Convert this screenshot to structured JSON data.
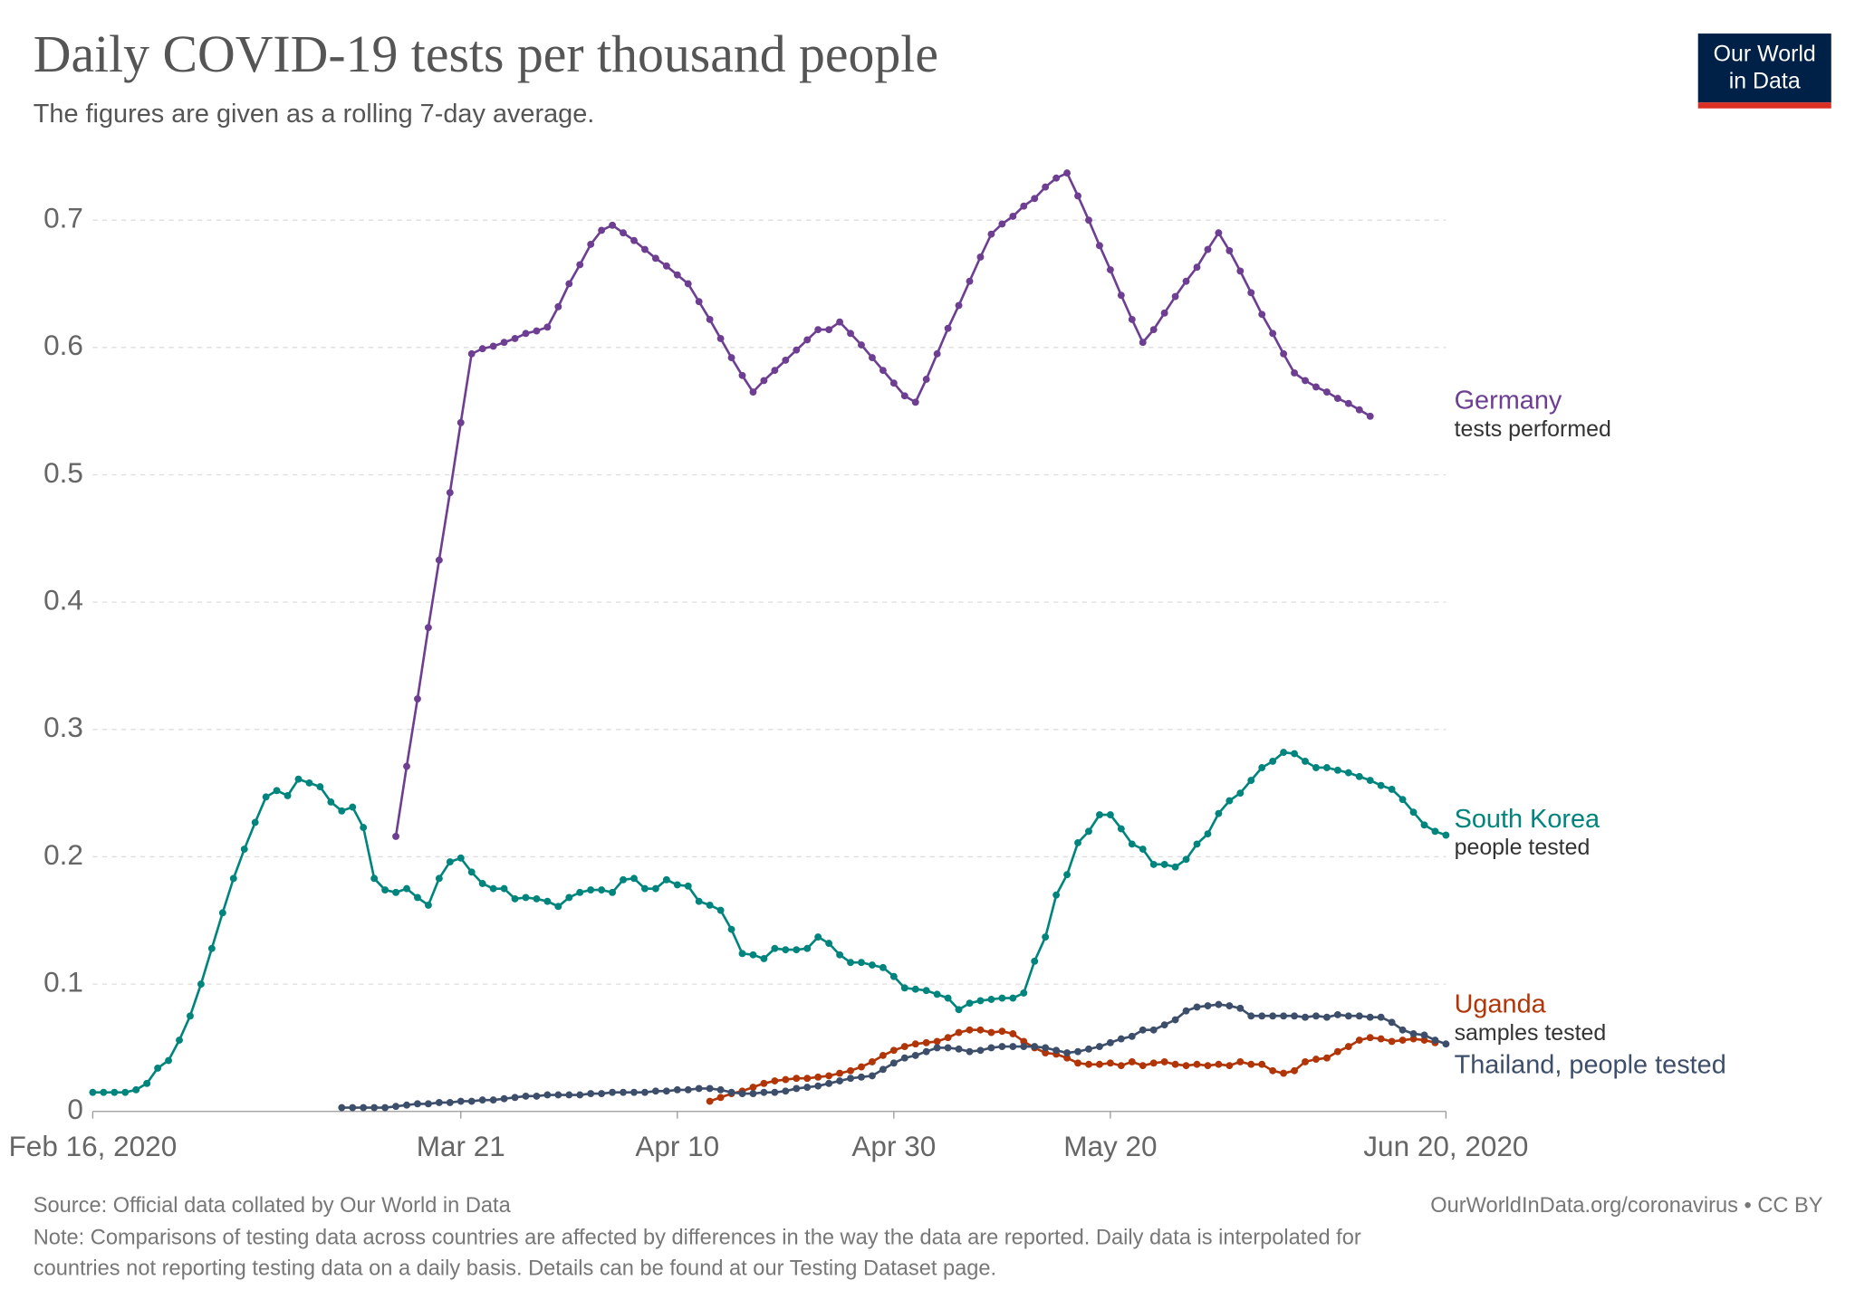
{
  "chart_data": {
    "type": "line",
    "title": "Daily COVID-19 tests per thousand people",
    "subtitle": "The figures are given as a rolling 7-day average.",
    "logo": [
      "Our World",
      "in Data"
    ],
    "source": "Source: Official data collated by Our World in Data",
    "credit": "OurWorldInData.org/coronavirus • CC BY",
    "note": [
      "Note: Comparisons of testing data across countries are affected by differences in the way the data are reported. Daily data is interpolated for",
      "countries not reporting testing data on a daily basis. Details can be found at our Testing Dataset page."
    ],
    "grid": true,
    "ylim": [
      0,
      0.7
    ],
    "yticks": [
      0,
      0.1,
      0.2,
      0.3,
      0.4,
      0.5,
      0.6,
      0.7
    ],
    "xlim": [
      "2020-02-16",
      "2020-06-20"
    ],
    "xticks": [
      {
        "value": "2020-02-16",
        "label": "Feb 16, 2020"
      },
      {
        "value": "2020-03-21",
        "label": "Mar 21"
      },
      {
        "value": "2020-04-10",
        "label": "Apr 10"
      },
      {
        "value": "2020-04-30",
        "label": "Apr 30"
      },
      {
        "value": "2020-05-20",
        "label": "May 20"
      },
      {
        "value": "2020-06-20",
        "label": "Jun 20, 2020"
      }
    ],
    "x": [
      "2020-02-16",
      "2020-02-17",
      "2020-02-18",
      "2020-02-19",
      "2020-02-20",
      "2020-02-21",
      "2020-02-22",
      "2020-02-23",
      "2020-02-24",
      "2020-02-25",
      "2020-02-26",
      "2020-02-27",
      "2020-02-28",
      "2020-02-29",
      "2020-03-01",
      "2020-03-02",
      "2020-03-03",
      "2020-03-04",
      "2020-03-05",
      "2020-03-06",
      "2020-03-07",
      "2020-03-08",
      "2020-03-09",
      "2020-03-10",
      "2020-03-11",
      "2020-03-12",
      "2020-03-13",
      "2020-03-14",
      "2020-03-15",
      "2020-03-16",
      "2020-03-17",
      "2020-03-18",
      "2020-03-19",
      "2020-03-20",
      "2020-03-21",
      "2020-03-22",
      "2020-03-23",
      "2020-03-24",
      "2020-03-25",
      "2020-03-26",
      "2020-03-27",
      "2020-03-28",
      "2020-03-29",
      "2020-03-30",
      "2020-03-31",
      "2020-04-01",
      "2020-04-02",
      "2020-04-03",
      "2020-04-04",
      "2020-04-05",
      "2020-04-06",
      "2020-04-07",
      "2020-04-08",
      "2020-04-09",
      "2020-04-10",
      "2020-04-11",
      "2020-04-12",
      "2020-04-13",
      "2020-04-14",
      "2020-04-15",
      "2020-04-16",
      "2020-04-17",
      "2020-04-18",
      "2020-04-19",
      "2020-04-20",
      "2020-04-21",
      "2020-04-22",
      "2020-04-23",
      "2020-04-24",
      "2020-04-25",
      "2020-04-26",
      "2020-04-27",
      "2020-04-28",
      "2020-04-29",
      "2020-04-30",
      "2020-05-01",
      "2020-05-02",
      "2020-05-03",
      "2020-05-04",
      "2020-05-05",
      "2020-05-06",
      "2020-05-07",
      "2020-05-08",
      "2020-05-09",
      "2020-05-10",
      "2020-05-11",
      "2020-05-12",
      "2020-05-13",
      "2020-05-14",
      "2020-05-15",
      "2020-05-16",
      "2020-05-17",
      "2020-05-18",
      "2020-05-19",
      "2020-05-20",
      "2020-05-21",
      "2020-05-22",
      "2020-05-23",
      "2020-05-24",
      "2020-05-25",
      "2020-05-26",
      "2020-05-27",
      "2020-05-28",
      "2020-05-29",
      "2020-05-30",
      "2020-05-31",
      "2020-06-01",
      "2020-06-02",
      "2020-06-03",
      "2020-06-04",
      "2020-06-05",
      "2020-06-06",
      "2020-06-07",
      "2020-06-08",
      "2020-06-09",
      "2020-06-10",
      "2020-06-11",
      "2020-06-12",
      "2020-06-13",
      "2020-06-14",
      "2020-06-15",
      "2020-06-16",
      "2020-06-17",
      "2020-06-18",
      "2020-06-19",
      "2020-06-20"
    ],
    "series": [
      {
        "name": "Germany",
        "note": "tests performed",
        "color": "#6d3e91",
        "values": [
          null,
          null,
          null,
          null,
          null,
          null,
          null,
          null,
          null,
          null,
          null,
          null,
          null,
          null,
          null,
          null,
          null,
          null,
          null,
          null,
          null,
          null,
          null,
          null,
          null,
          null,
          null,
          null,
          0.216,
          0.271,
          0.324,
          0.38,
          0.433,
          0.486,
          0.541,
          0.595,
          0.599,
          0.601,
          0.604,
          0.607,
          0.611,
          0.613,
          0.616,
          0.632,
          0.65,
          0.665,
          0.681,
          0.692,
          0.696,
          0.69,
          0.684,
          0.677,
          0.67,
          0.664,
          0.657,
          0.65,
          0.636,
          0.622,
          0.607,
          0.592,
          0.578,
          0.565,
          0.574,
          0.582,
          0.59,
          0.598,
          0.606,
          0.614,
          0.614,
          0.62,
          0.611,
          0.602,
          0.592,
          0.582,
          0.572,
          0.562,
          0.557,
          0.575,
          0.595,
          0.615,
          0.633,
          0.652,
          0.671,
          0.689,
          0.697,
          0.703,
          0.711,
          0.717,
          0.726,
          0.733,
          0.737,
          0.719,
          0.7,
          0.68,
          0.661,
          0.641,
          0.622,
          0.604,
          0.614,
          0.627,
          0.64,
          0.652,
          0.663,
          0.677,
          0.69,
          0.676,
          0.66,
          0.643,
          0.626,
          0.611,
          0.595,
          0.58,
          0.574,
          0.569,
          0.565,
          0.56,
          0.556,
          0.551,
          0.546,
          null,
          null,
          null,
          null,
          null,
          null,
          null
        ]
      },
      {
        "name": "South Korea",
        "note": "people tested",
        "color": "#00847e",
        "values": [
          0.015,
          0.015,
          0.015,
          0.015,
          0.017,
          0.022,
          0.034,
          0.04,
          0.056,
          0.075,
          0.1,
          0.128,
          0.156,
          0.183,
          0.206,
          0.227,
          0.247,
          0.252,
          0.248,
          0.261,
          0.258,
          0.255,
          0.243,
          0.236,
          0.239,
          0.223,
          0.183,
          0.174,
          0.172,
          0.175,
          0.168,
          0.162,
          0.183,
          0.196,
          0.199,
          0.188,
          0.179,
          0.175,
          0.175,
          0.167,
          0.168,
          0.167,
          0.165,
          0.161,
          0.168,
          0.172,
          0.174,
          0.174,
          0.172,
          0.182,
          0.183,
          0.175,
          0.175,
          0.182,
          0.178,
          0.177,
          0.165,
          0.162,
          0.158,
          0.143,
          0.124,
          0.123,
          0.12,
          0.128,
          0.127,
          0.127,
          0.128,
          0.137,
          0.132,
          0.123,
          0.117,
          0.117,
          0.115,
          0.113,
          0.106,
          0.097,
          0.096,
          0.095,
          0.092,
          0.089,
          0.08,
          0.085,
          0.087,
          0.088,
          0.089,
          0.089,
          0.093,
          0.118,
          0.137,
          0.17,
          0.186,
          0.211,
          0.22,
          0.233,
          0.233,
          0.222,
          0.21,
          0.206,
          0.194,
          0.194,
          0.192,
          0.198,
          0.21,
          0.218,
          0.234,
          0.244,
          0.25,
          0.26,
          0.27,
          0.275,
          0.282,
          0.281,
          0.275,
          0.27,
          0.27,
          0.268,
          0.266,
          0.263,
          0.26,
          0.256,
          0.253,
          0.245,
          0.235,
          0.225,
          0.22,
          0.217
        ]
      },
      {
        "name": "Uganda",
        "note": "samples tested",
        "color": "#b13507",
        "values": [
          null,
          null,
          null,
          null,
          null,
          null,
          null,
          null,
          null,
          null,
          null,
          null,
          null,
          null,
          null,
          null,
          null,
          null,
          null,
          null,
          null,
          null,
          null,
          null,
          null,
          null,
          null,
          null,
          null,
          null,
          null,
          null,
          null,
          null,
          null,
          null,
          null,
          null,
          null,
          null,
          null,
          null,
          null,
          null,
          null,
          null,
          null,
          null,
          null,
          null,
          null,
          null,
          null,
          null,
          null,
          null,
          null,
          0.008,
          0.011,
          0.014,
          0.016,
          0.019,
          0.022,
          0.024,
          0.025,
          0.026,
          0.026,
          0.027,
          0.028,
          0.03,
          0.032,
          0.035,
          0.039,
          0.044,
          0.048,
          0.051,
          0.053,
          0.054,
          0.055,
          0.058,
          0.062,
          0.064,
          0.064,
          0.062,
          0.063,
          0.061,
          0.055,
          0.05,
          0.046,
          0.045,
          0.042,
          0.038,
          0.037,
          0.037,
          0.038,
          0.036,
          0.039,
          0.036,
          0.038,
          0.039,
          0.037,
          0.036,
          0.037,
          0.036,
          0.037,
          0.036,
          0.039,
          0.037,
          0.037,
          0.032,
          0.03,
          0.032,
          0.039,
          0.041,
          0.042,
          0.047,
          0.051,
          0.056,
          0.058,
          0.057,
          0.055,
          0.056,
          0.057,
          0.056,
          0.054,
          null
        ]
      },
      {
        "name": "Thailand, people tested",
        "color": "#3d4e6b",
        "values": [
          null,
          null,
          null,
          null,
          null,
          null,
          null,
          null,
          null,
          null,
          null,
          null,
          null,
          null,
          null,
          null,
          null,
          null,
          null,
          null,
          null,
          null,
          null,
          0.003,
          0.003,
          0.003,
          0.003,
          0.003,
          0.004,
          0.005,
          0.006,
          0.006,
          0.007,
          0.007,
          0.008,
          0.008,
          0.009,
          0.009,
          0.01,
          0.011,
          0.012,
          0.012,
          0.013,
          0.013,
          0.013,
          0.013,
          0.014,
          0.014,
          0.015,
          0.015,
          0.015,
          0.015,
          0.016,
          0.016,
          0.017,
          0.017,
          0.018,
          0.018,
          0.017,
          0.015,
          0.014,
          0.014,
          0.015,
          0.015,
          0.016,
          0.018,
          0.019,
          0.02,
          0.022,
          0.024,
          0.026,
          0.027,
          0.028,
          0.033,
          0.038,
          0.042,
          0.044,
          0.047,
          0.05,
          0.05,
          0.049,
          0.047,
          0.048,
          0.05,
          0.051,
          0.051,
          0.051,
          0.051,
          0.05,
          0.048,
          0.046,
          0.047,
          0.049,
          0.051,
          0.054,
          0.057,
          0.059,
          0.064,
          0.064,
          0.068,
          0.072,
          0.079,
          0.082,
          0.083,
          0.084,
          0.083,
          0.081,
          0.075,
          0.075,
          0.075,
          0.075,
          0.075,
          0.074,
          0.075,
          0.074,
          0.076,
          0.075,
          0.075,
          0.074,
          0.074,
          0.07,
          0.064,
          0.061,
          0.06,
          0.056,
          0.053
        ]
      }
    ]
  }
}
